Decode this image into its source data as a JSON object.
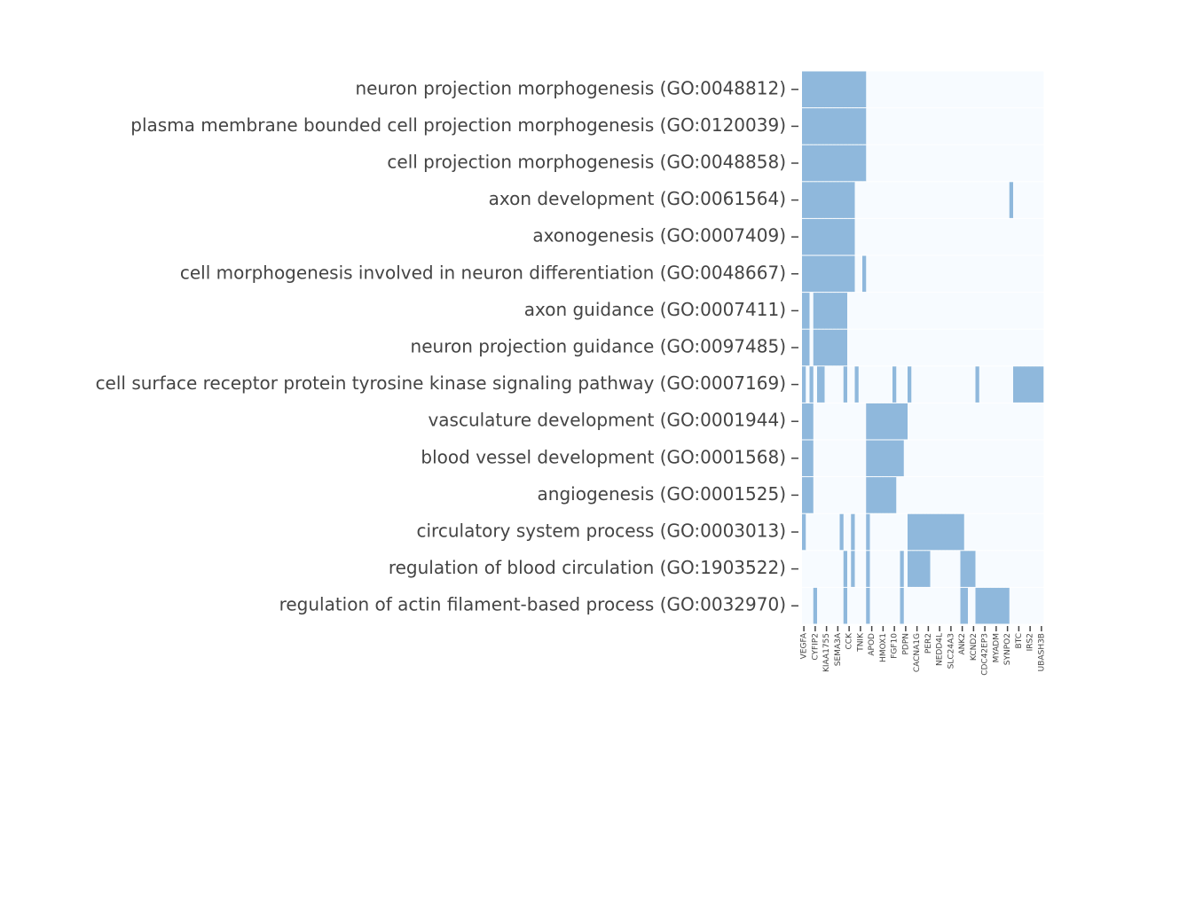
{
  "chart_data": {
    "type": "heatmap",
    "colors": [
      "#f7fbff",
      "#8fb8dc"
    ],
    "categories": [
      "VEGFA",
      null,
      null,
      "CYFIP2",
      null,
      null,
      "KIAA1755",
      null,
      null,
      "SEMA3A",
      null,
      null,
      "CCK",
      null,
      null,
      "TNIK",
      null,
      null,
      "APOD",
      null,
      null,
      "HMOX1",
      null,
      null,
      "FGF10",
      null,
      null,
      "PDPN",
      null,
      null,
      "CACNA1G",
      null,
      null,
      "PER2",
      null,
      null,
      "NEDD4L",
      null,
      null,
      "SLC24A3",
      null,
      null,
      "ANK2",
      null,
      null,
      "KCND2",
      null,
      null,
      "CDC42EP3",
      null,
      null,
      "MYADM",
      null,
      null,
      "SYNPO2",
      null,
      null,
      "BTC",
      null,
      null,
      "IRS2",
      null,
      null,
      "UBASH3B"
    ],
    "rows": [
      "neuron projection morphogenesis (GO:0048812)",
      "plasma membrane bounded cell projection morphogenesis (GO:0120039)",
      "cell projection morphogenesis (GO:0048858)",
      "axon development (GO:0061564)",
      "axonogenesis (GO:0007409)",
      "cell morphogenesis involved in neuron differentiation (GO:0048667)",
      "axon guidance (GO:0007411)",
      "neuron projection guidance (GO:0097485)",
      "cell surface receptor protein tyrosine kinase signaling pathway (GO:0007169)",
      "vasculature development (GO:0001944)",
      "blood vessel development (GO:0001568)",
      "angiogenesis (GO:0001525)",
      "circulatory system process (GO:0003013)",
      "regulation of blood circulation (GO:1903522)",
      "regulation of actin filament-based process (GO:0032970)"
    ],
    "z": [
      [
        1,
        1,
        1,
        1,
        1,
        1,
        1,
        1,
        1,
        1,
        1,
        1,
        1,
        1,
        1,
        1,
        1,
        0,
        0,
        0,
        0,
        0,
        0,
        0,
        0,
        0,
        0,
        0,
        0,
        0,
        0,
        0,
        0,
        0,
        0,
        0,
        0,
        0,
        0,
        0,
        0,
        0,
        0,
        0,
        0,
        0,
        0,
        0,
        0,
        0,
        0,
        0,
        0,
        0,
        0,
        0,
        0,
        0,
        0,
        0,
        0,
        0,
        0,
        0
      ],
      [
        1,
        1,
        1,
        1,
        1,
        1,
        1,
        1,
        1,
        1,
        1,
        1,
        1,
        1,
        1,
        1,
        1,
        0,
        0,
        0,
        0,
        0,
        0,
        0,
        0,
        0,
        0,
        0,
        0,
        0,
        0,
        0,
        0,
        0,
        0,
        0,
        0,
        0,
        0,
        0,
        0,
        0,
        0,
        0,
        0,
        0,
        0,
        0,
        0,
        0,
        0,
        0,
        0,
        0,
        0,
        0,
        0,
        0,
        0,
        0,
        0,
        0,
        0,
        0
      ],
      [
        1,
        1,
        1,
        1,
        1,
        1,
        1,
        1,
        1,
        1,
        1,
        1,
        1,
        1,
        1,
        1,
        1,
        0,
        0,
        0,
        0,
        0,
        0,
        0,
        0,
        0,
        0,
        0,
        0,
        0,
        0,
        0,
        0,
        0,
        0,
        0,
        0,
        0,
        0,
        0,
        0,
        0,
        0,
        0,
        0,
        0,
        0,
        0,
        0,
        0,
        0,
        0,
        0,
        0,
        0,
        0,
        0,
        0,
        0,
        0,
        0,
        0,
        0,
        0
      ],
      [
        1,
        1,
        1,
        1,
        1,
        1,
        1,
        1,
        1,
        1,
        1,
        1,
        1,
        1,
        0,
        0,
        0,
        0,
        0,
        0,
        0,
        0,
        0,
        0,
        0,
        0,
        0,
        0,
        0,
        0,
        0,
        0,
        0,
        0,
        0,
        0,
        0,
        0,
        0,
        0,
        0,
        0,
        0,
        0,
        0,
        0,
        0,
        0,
        0,
        0,
        0,
        0,
        0,
        0,
        0,
        1,
        0,
        0,
        0,
        0,
        0,
        0,
        0,
        0
      ],
      [
        1,
        1,
        1,
        1,
        1,
        1,
        1,
        1,
        1,
        1,
        1,
        1,
        1,
        1,
        0,
        0,
        0,
        0,
        0,
        0,
        0,
        0,
        0,
        0,
        0,
        0,
        0,
        0,
        0,
        0,
        0,
        0,
        0,
        0,
        0,
        0,
        0,
        0,
        0,
        0,
        0,
        0,
        0,
        0,
        0,
        0,
        0,
        0,
        0,
        0,
        0,
        0,
        0,
        0,
        0,
        0,
        0,
        0,
        0,
        0,
        0,
        0,
        0,
        0
      ],
      [
        1,
        1,
        1,
        1,
        1,
        1,
        1,
        1,
        1,
        1,
        1,
        1,
        1,
        1,
        0,
        0,
        1,
        0,
        0,
        0,
        0,
        0,
        0,
        0,
        0,
        0,
        0,
        0,
        0,
        0,
        0,
        0,
        0,
        0,
        0,
        0,
        0,
        0,
        0,
        0,
        0,
        0,
        0,
        0,
        0,
        0,
        0,
        0,
        0,
        0,
        0,
        0,
        0,
        0,
        0,
        0,
        0,
        0,
        0,
        0,
        0,
        0,
        0,
        0
      ],
      [
        1,
        1,
        0,
        1,
        1,
        1,
        1,
        1,
        1,
        1,
        1,
        1,
        0,
        0,
        0,
        0,
        0,
        0,
        0,
        0,
        0,
        0,
        0,
        0,
        0,
        0,
        0,
        0,
        0,
        0,
        0,
        0,
        0,
        0,
        0,
        0,
        0,
        0,
        0,
        0,
        0,
        0,
        0,
        0,
        0,
        0,
        0,
        0,
        0,
        0,
        0,
        0,
        0,
        0,
        0,
        0,
        0,
        0,
        0,
        0,
        0,
        0,
        0,
        0
      ],
      [
        1,
        1,
        0,
        1,
        1,
        1,
        1,
        1,
        1,
        1,
        1,
        1,
        0,
        0,
        0,
        0,
        0,
        0,
        0,
        0,
        0,
        0,
        0,
        0,
        0,
        0,
        0,
        0,
        0,
        0,
        0,
        0,
        0,
        0,
        0,
        0,
        0,
        0,
        0,
        0,
        0,
        0,
        0,
        0,
        0,
        0,
        0,
        0,
        0,
        0,
        0,
        0,
        0,
        0,
        0,
        0,
        0,
        0,
        0,
        0,
        0,
        0,
        0,
        0
      ],
      [
        1,
        0,
        1,
        0,
        1,
        1,
        0,
        0,
        0,
        0,
        0,
        1,
        0,
        0,
        1,
        0,
        0,
        0,
        0,
        0,
        0,
        0,
        0,
        0,
        1,
        0,
        0,
        0,
        1,
        0,
        0,
        0,
        0,
        0,
        0,
        0,
        0,
        0,
        0,
        0,
        0,
        0,
        0,
        0,
        0,
        0,
        1,
        0,
        0,
        0,
        0,
        0,
        0,
        0,
        0,
        0,
        1,
        1,
        1,
        1,
        1,
        1,
        1,
        1
      ],
      [
        1,
        1,
        1,
        0,
        0,
        0,
        0,
        0,
        0,
        0,
        0,
        0,
        0,
        0,
        0,
        0,
        0,
        1,
        1,
        1,
        1,
        1,
        1,
        1,
        1,
        1,
        1,
        1,
        0,
        0,
        0,
        0,
        0,
        0,
        0,
        0,
        0,
        0,
        0,
        0,
        0,
        0,
        0,
        0,
        0,
        0,
        0,
        0,
        0,
        0,
        0,
        0,
        0,
        0,
        0,
        0,
        0,
        0,
        0,
        0,
        0,
        0,
        0,
        0
      ],
      [
        1,
        1,
        1,
        0,
        0,
        0,
        0,
        0,
        0,
        0,
        0,
        0,
        0,
        0,
        0,
        0,
        0,
        1,
        1,
        1,
        1,
        1,
        1,
        1,
        1,
        1,
        1,
        0,
        0,
        0,
        0,
        0,
        0,
        0,
        0,
        0,
        0,
        0,
        0,
        0,
        0,
        0,
        0,
        0,
        0,
        0,
        0,
        0,
        0,
        0,
        0,
        0,
        0,
        0,
        0,
        0,
        0,
        0,
        0,
        0,
        0,
        0,
        0,
        0
      ],
      [
        1,
        1,
        1,
        0,
        0,
        0,
        0,
        0,
        0,
        0,
        0,
        0,
        0,
        0,
        0,
        0,
        0,
        1,
        1,
        1,
        1,
        1,
        1,
        1,
        1,
        0,
        0,
        0,
        0,
        0,
        0,
        0,
        0,
        0,
        0,
        0,
        0,
        0,
        0,
        0,
        0,
        0,
        0,
        0,
        0,
        0,
        0,
        0,
        0,
        0,
        0,
        0,
        0,
        0,
        0,
        0,
        0,
        0,
        0,
        0,
        0,
        0,
        0,
        0
      ],
      [
        1,
        0,
        0,
        0,
        0,
        0,
        0,
        0,
        0,
        0,
        1,
        0,
        0,
        1,
        0,
        0,
        0,
        1,
        0,
        0,
        0,
        0,
        0,
        0,
        0,
        0,
        0,
        0,
        1,
        1,
        1,
        1,
        1,
        1,
        1,
        1,
        1,
        1,
        1,
        1,
        1,
        1,
        1,
        0,
        0,
        0,
        0,
        0,
        0,
        0,
        0,
        0,
        0,
        0,
        0,
        0,
        0,
        0,
        0,
        0,
        0,
        0,
        0,
        0
      ],
      [
        0,
        0,
        0,
        0,
        0,
        0,
        0,
        0,
        0,
        0,
        0,
        1,
        0,
        1,
        0,
        0,
        0,
        1,
        0,
        0,
        0,
        0,
        0,
        0,
        0,
        0,
        1,
        0,
        1,
        1,
        1,
        1,
        1,
        1,
        0,
        0,
        0,
        0,
        0,
        0,
        0,
        0,
        1,
        1,
        1,
        1,
        0,
        0,
        0,
        0,
        0,
        0,
        0,
        0,
        0,
        0,
        0,
        0,
        0,
        0,
        0,
        0,
        0,
        0
      ],
      [
        0,
        0,
        0,
        1,
        0,
        0,
        0,
        0,
        0,
        0,
        0,
        1,
        0,
        0,
        0,
        0,
        0,
        1,
        0,
        0,
        0,
        0,
        0,
        0,
        0,
        0,
        1,
        0,
        0,
        0,
        0,
        0,
        0,
        0,
        0,
        0,
        0,
        0,
        0,
        0,
        0,
        0,
        1,
        1,
        0,
        0,
        1,
        1,
        1,
        1,
        1,
        1,
        1,
        1,
        1,
        0,
        0,
        0,
        0,
        0,
        0,
        0,
        0,
        0
      ]
    ]
  }
}
